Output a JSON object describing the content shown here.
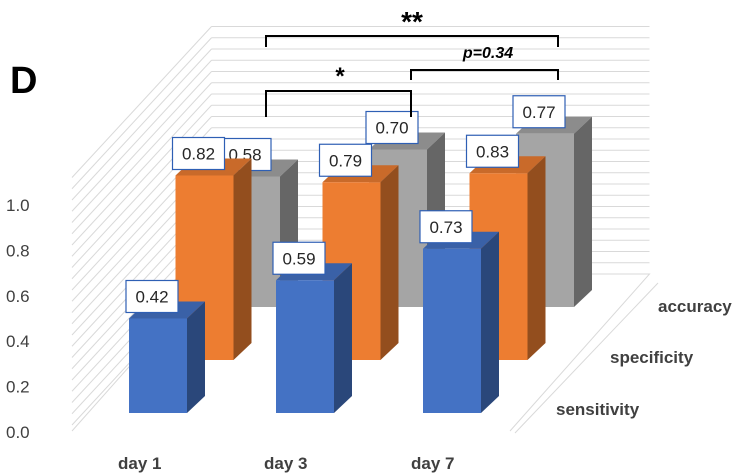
{
  "panel_label": "D",
  "chart_data": {
    "type": "bar",
    "style": "3d-column",
    "categories": [
      "day 1",
      "day 3",
      "day 7"
    ],
    "series": [
      {
        "name": "sensitivity",
        "values": [
          0.42,
          0.59,
          0.73
        ],
        "color": "#4472C4"
      },
      {
        "name": "specificity",
        "values": [
          0.82,
          0.79,
          0.83
        ],
        "color": "#ED7D31"
      },
      {
        "name": "accuracy",
        "values": [
          0.58,
          0.7,
          0.77
        ],
        "color": "#A5A5A5"
      }
    ],
    "data_labels": true,
    "ylim": [
      0,
      1.0
    ],
    "yticks": [
      "0.0",
      "0.2",
      "0.4",
      "0.6",
      "0.8",
      "1.0"
    ],
    "grid": true,
    "significance": [
      {
        "label": "*",
        "from": "day 1",
        "to": "day 3",
        "series": "accuracy"
      },
      {
        "label": "**",
        "from": "day 1",
        "to": "day 7",
        "series": "accuracy"
      },
      {
        "label": "p=0.34",
        "from": "day 3",
        "to": "day 7",
        "series": "accuracy"
      }
    ]
  }
}
